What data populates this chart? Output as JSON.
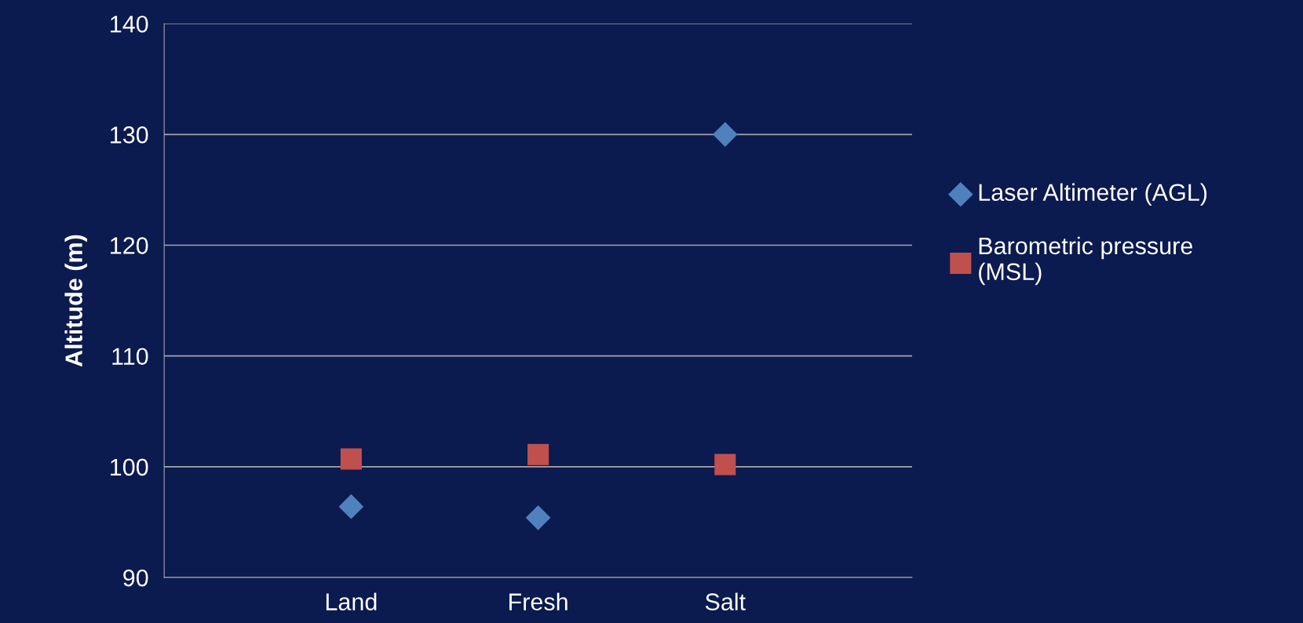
{
  "chart_data": {
    "type": "scatter",
    "ylabel": "Altitude (m)",
    "categories": [
      null,
      "Land",
      "Fresh",
      "Salt",
      null
    ],
    "series": [
      {
        "name": "Laser Altimeter (AGL)",
        "color": "#4f81bd",
        "marker": "diamond",
        "values": [
          null,
          96.4,
          95.4,
          130,
          null
        ]
      },
      {
        "name": "Barometric pressure\n(MSL)",
        "color": "#c0504d",
        "marker": "square",
        "values": [
          null,
          100.7,
          101.1,
          100.2,
          null
        ]
      }
    ],
    "ylim": [
      90,
      140
    ],
    "yticks": [
      90,
      100,
      110,
      120,
      130,
      140
    ],
    "grid": "y",
    "legend": "right"
  }
}
